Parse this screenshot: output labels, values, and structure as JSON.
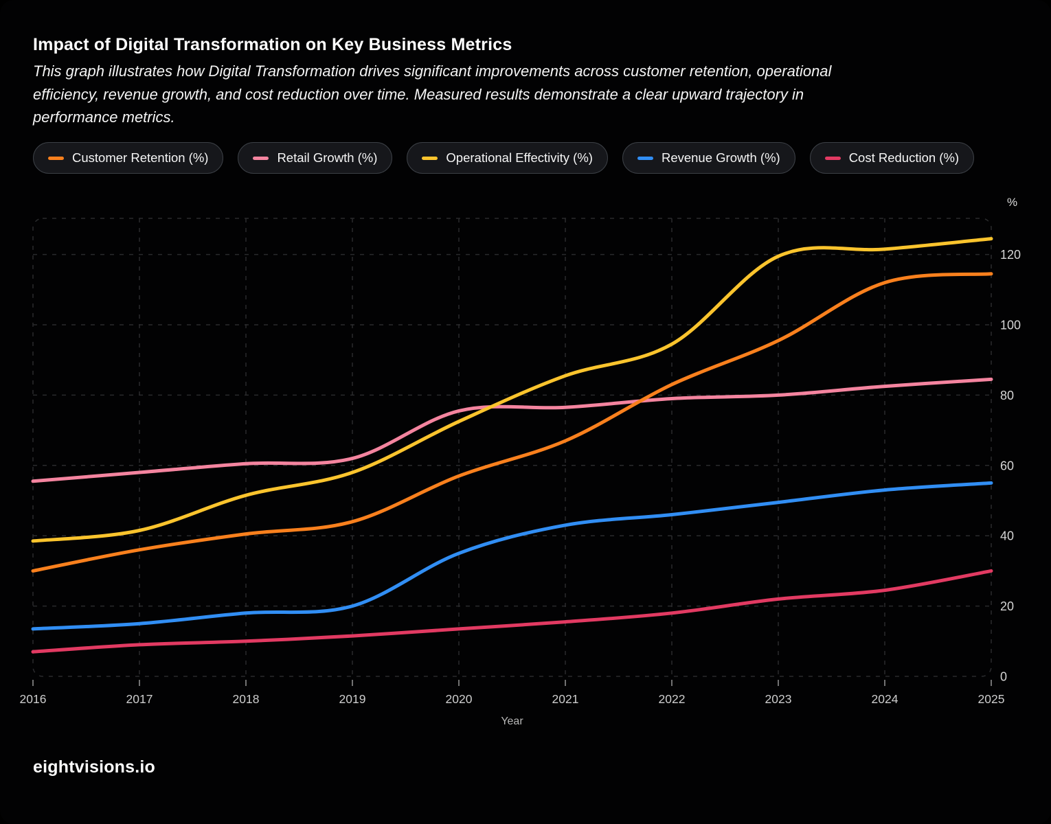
{
  "header": {
    "title": "Impact of Digital Transformation on Key Business Metrics",
    "subtitle_lines": [
      "This graph illustrates how Digital Transformation drives significant improvements across customer retention, operational",
      "efficiency, revenue growth, and cost reduction over time. Measured results demonstrate a clear upward trajectory in",
      "performance metrics."
    ]
  },
  "chart_data": {
    "type": "line",
    "title": "Impact of Digital Transformation on Key Business Metrics",
    "xlabel": "Year",
    "ylabel": "%",
    "x": [
      2016,
      2017,
      2018,
      2019,
      2020,
      2021,
      2022,
      2023,
      2024,
      2025
    ],
    "y_ticks": [
      0,
      20,
      40,
      60,
      80,
      100,
      120
    ],
    "ylim": [
      0,
      130
    ],
    "grid": "dashed",
    "legend_position": "top",
    "series": [
      {
        "name": "Customer Retention (%)",
        "color": "#f9801d",
        "values": [
          30,
          36,
          40.5,
          44,
          57,
          67,
          83,
          95.5,
          112,
          114.5
        ]
      },
      {
        "name": "Retail Growth (%)",
        "color": "#f4849f",
        "values": [
          55.5,
          58,
          60.5,
          62,
          75.5,
          76.5,
          79,
          80,
          82.5,
          84.5
        ]
      },
      {
        "name": "Operational Effectivity (%)",
        "color": "#fbc42d",
        "values": [
          38.5,
          41.5,
          51.5,
          58,
          72.5,
          85.5,
          94.5,
          119.5,
          121.5,
          124.5
        ]
      },
      {
        "name": "Revenue Growth (%)",
        "color": "#318ef4",
        "values": [
          13.5,
          15,
          18,
          20,
          35,
          43,
          46,
          49.5,
          53,
          55
        ]
      },
      {
        "name": "Cost Reduction (%)",
        "color": "#e23a62",
        "values": [
          7,
          9,
          10,
          11.5,
          13.5,
          15.5,
          18,
          22,
          24.5,
          30
        ]
      }
    ]
  },
  "footer": {
    "brand": "eightvisions.io"
  }
}
